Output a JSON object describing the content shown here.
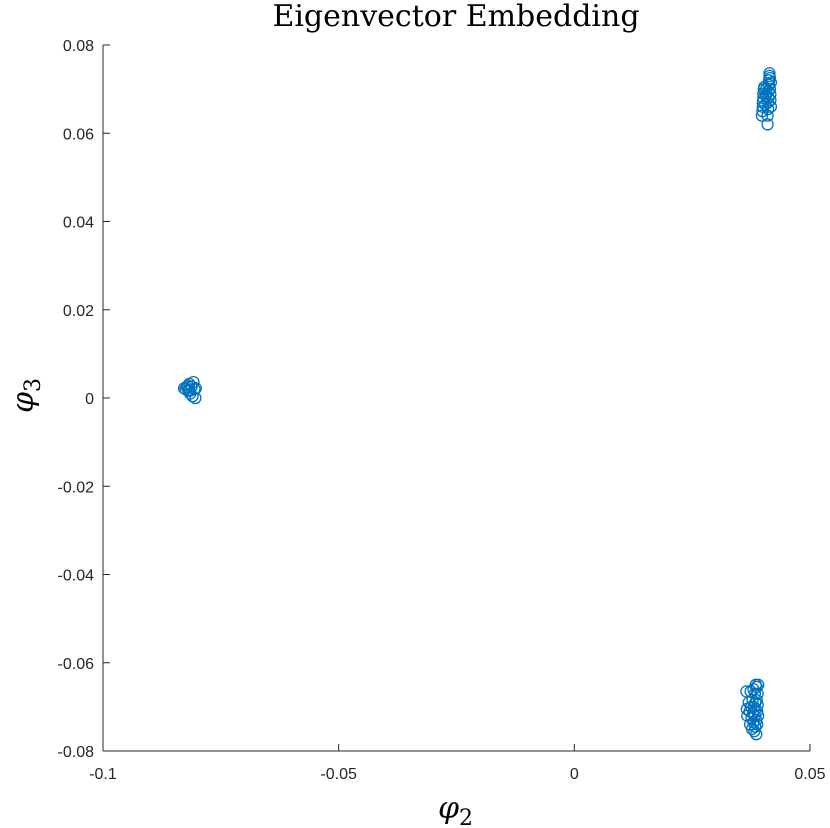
{
  "chart_data": {
    "type": "scatter",
    "title": "Eigenvector Embedding",
    "xlabel": "φ",
    "xlabel_sub": "2",
    "ylabel": "φ",
    "ylabel_sub": "3",
    "xlim": [
      -0.1,
      0.05
    ],
    "ylim": [
      -0.08,
      0.08
    ],
    "xticks": [
      -0.1,
      -0.05,
      0,
      0.05
    ],
    "xtick_labels": [
      "-0.1",
      "-0.05",
      "0",
      "0.05"
    ],
    "yticks": [
      -0.08,
      -0.06,
      -0.04,
      -0.02,
      0,
      0.02,
      0.04,
      0.06,
      0.08
    ],
    "ytick_labels": [
      "-0.08",
      "-0.06",
      "-0.04",
      "-0.02",
      "0",
      "0.02",
      "0.04",
      "0.06",
      "0.08"
    ],
    "grid": false,
    "legend": "none",
    "marker": "circle-open",
    "color": "#0072BD",
    "series": [
      {
        "points": [
          [
            -0.0828,
            0.0022
          ],
          [
            -0.0825,
            0.002
          ],
          [
            -0.0822,
            0.0024
          ],
          [
            -0.0819,
            0.0018
          ],
          [
            -0.0817,
            0.0032
          ],
          [
            -0.0815,
            0.001
          ],
          [
            -0.0812,
            0.0026
          ],
          [
            -0.081,
            0.0004
          ],
          [
            -0.0808,
            0.0036
          ],
          [
            -0.0806,
            0.002
          ],
          [
            -0.0804,
            0.0
          ],
          [
            -0.0803,
            0.0022
          ],
          [
            -0.0816,
            0.0016
          ],
          [
            -0.082,
            0.0028
          ],
          [
            0.0398,
            0.064
          ],
          [
            0.0399,
            0.065
          ],
          [
            0.04,
            0.066
          ],
          [
            0.04,
            0.067
          ],
          [
            0.0401,
            0.068
          ],
          [
            0.0401,
            0.069
          ],
          [
            0.0402,
            0.07
          ],
          [
            0.0403,
            0.0705
          ],
          [
            0.0405,
            0.0665
          ],
          [
            0.0406,
            0.0685
          ],
          [
            0.0407,
            0.07
          ],
          [
            0.0408,
            0.069
          ],
          [
            0.041,
            0.062
          ],
          [
            0.041,
            0.064
          ],
          [
            0.0411,
            0.0655
          ],
          [
            0.0411,
            0.067
          ],
          [
            0.0412,
            0.068
          ],
          [
            0.0412,
            0.0695
          ],
          [
            0.0413,
            0.071
          ],
          [
            0.0413,
            0.072
          ],
          [
            0.0414,
            0.073
          ],
          [
            0.0414,
            0.0736
          ],
          [
            0.0415,
            0.0725
          ],
          [
            0.0415,
            0.07
          ],
          [
            0.0416,
            0.0688
          ],
          [
            0.0416,
            0.0675
          ],
          [
            0.0417,
            0.066
          ],
          [
            0.0417,
            0.0715
          ],
          [
            0.0365,
            -0.0665
          ],
          [
            0.0366,
            -0.0705
          ],
          [
            0.0367,
            -0.072
          ],
          [
            0.037,
            -0.069
          ],
          [
            0.0372,
            -0.071
          ],
          [
            0.0373,
            -0.074
          ],
          [
            0.0374,
            -0.0665
          ],
          [
            0.0375,
            -0.07
          ],
          [
            0.0376,
            -0.0725
          ],
          [
            0.0377,
            -0.075
          ],
          [
            0.0378,
            -0.0685
          ],
          [
            0.0379,
            -0.0715
          ],
          [
            0.038,
            -0.066
          ],
          [
            0.038,
            -0.0735
          ],
          [
            0.0381,
            -0.07
          ],
          [
            0.0382,
            -0.0755
          ],
          [
            0.0383,
            -0.067
          ],
          [
            0.0383,
            -0.072
          ],
          [
            0.0384,
            -0.069
          ],
          [
            0.0384,
            -0.0745
          ],
          [
            0.0385,
            -0.065
          ],
          [
            0.0385,
            -0.0705
          ],
          [
            0.0386,
            -0.073
          ],
          [
            0.0386,
            -0.0762
          ],
          [
            0.0387,
            -0.0655
          ],
          [
            0.0387,
            -0.0685
          ],
          [
            0.0388,
            -0.071
          ],
          [
            0.0388,
            -0.074
          ],
          [
            0.0389,
            -0.067
          ],
          [
            0.0389,
            -0.0695
          ],
          [
            0.039,
            -0.072
          ],
          [
            0.039,
            -0.065
          ]
        ]
      }
    ]
  }
}
